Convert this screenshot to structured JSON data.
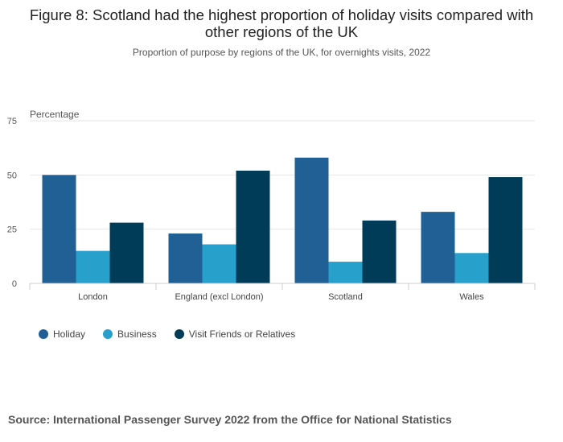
{
  "title": "Figure 8: Scotland had the highest proportion of holiday visits compared with other regions of the UK",
  "subtitle": "Proportion of purpose by regions of the UK, for overnights visits, 2022",
  "source": "Source:  International Passenger Survey 2022 from the Office for National Statistics",
  "chart_data": {
    "type": "bar",
    "title": "Figure 8: Scotland had the highest proportion of holiday visits compared with other regions of the UK",
    "subtitle": "Proportion of purpose by regions of the UK, for overnights visits, 2022",
    "ylabel": "Percentage",
    "xlabel": "",
    "ylim": [
      0,
      75
    ],
    "yticks": [
      0,
      25,
      50,
      75
    ],
    "grid": true,
    "legend": "bottom-left",
    "categories": [
      "London",
      "England (excl London)",
      "Scotland",
      "Wales"
    ],
    "series": [
      {
        "name": "Holiday",
        "color": "#206095",
        "values": [
          50,
          23,
          58,
          33
        ]
      },
      {
        "name": "Business",
        "color": "#27a0cc",
        "values": [
          15,
          18,
          10,
          14
        ]
      },
      {
        "name": "Visit Friends or Relatives",
        "color": "#003c57",
        "values": [
          28,
          52,
          29,
          49
        ]
      }
    ]
  }
}
